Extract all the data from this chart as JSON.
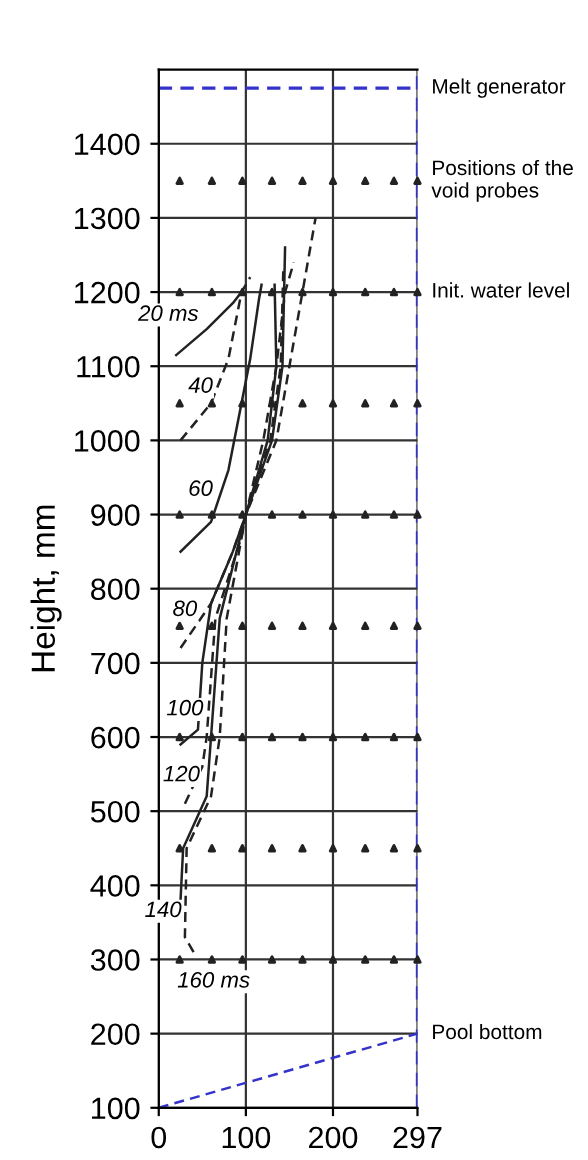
{
  "chart_data": {
    "type": "line",
    "ylabel": "Height, mm",
    "xlim": [
      0,
      297
    ],
    "xticks": [
      0,
      100,
      200,
      297
    ],
    "ylim": [
      100,
      1500
    ],
    "yticks": [
      100,
      200,
      300,
      400,
      500,
      600,
      700,
      800,
      900,
      1000,
      1100,
      1200,
      1300,
      1400
    ],
    "grid": true,
    "legend": false,
    "series": [
      {
        "color": "#222222",
        "line_style": "solid",
        "x": [
          20,
          55,
          85,
          95
        ],
        "values": [
          1115,
          1150,
          1185,
          1200
        ]
      },
      {
        "color": "#222222",
        "line_style": "dashed",
        "x": [
          25,
          60,
          80,
          95,
          105
        ],
        "values": [
          1000,
          1050,
          1110,
          1200,
          1220
        ]
      },
      {
        "color": "#222222",
        "line_style": "solid",
        "x": [
          25,
          60,
          80,
          95,
          105,
          115,
          118
        ],
        "values": [
          850,
          890,
          960,
          1050,
          1110,
          1190,
          1210
        ]
      },
      {
        "color": "#222222",
        "line_style": "dashed",
        "x": [
          25,
          60,
          85,
          100,
          120,
          135,
          145,
          155
        ],
        "values": [
          720,
          780,
          850,
          900,
          1000,
          1100,
          1200,
          1240
        ]
      },
      {
        "color": "#222222",
        "line_style": "solid",
        "x": [
          25,
          45,
          50,
          60,
          85,
          100,
          125,
          135,
          133
        ],
        "values": [
          590,
          610,
          700,
          780,
          850,
          900,
          1000,
          1100,
          1210
        ]
      },
      {
        "color": "#222222",
        "line_style": "dashed",
        "x": [
          30,
          50,
          55,
          65,
          95,
          100,
          128,
          140,
          143
        ],
        "values": [
          510,
          560,
          600,
          760,
          870,
          900,
          1000,
          1100,
          1230
        ]
      },
      {
        "color": "#222222",
        "line_style": "solid",
        "x": [
          25,
          28,
          55,
          60,
          70,
          100,
          130,
          142,
          145
        ],
        "values": [
          380,
          450,
          520,
          600,
          760,
          900,
          1000,
          1100,
          1260
        ]
      },
      {
        "color": "#222222",
        "line_style": "dashed",
        "x": [
          40,
          30,
          32,
          60,
          70,
          78,
          100,
          135,
          150,
          180
        ],
        "values": [
          310,
          330,
          450,
          520,
          600,
          760,
          900,
          1000,
          1100,
          1300
        ]
      },
      {
        "color": "#3333cc",
        "line_style": "dashed",
        "x": [
          0,
          297
        ],
        "values": [
          100,
          200
        ]
      },
      {
        "type": "scatter",
        "color": "#222222",
        "marker": "triangle",
        "x": [
          24,
          61,
          96,
          130,
          165,
          200,
          237,
          270,
          297,
          24,
          61,
          96,
          130,
          165,
          200,
          237,
          270,
          297,
          24,
          61,
          96,
          130,
          165,
          200,
          237,
          270,
          297,
          24,
          61,
          96,
          130,
          165,
          200,
          237,
          270,
          297,
          24,
          61,
          96,
          130,
          165,
          200,
          237,
          270,
          297,
          24,
          61,
          96,
          130,
          165,
          200,
          237,
          270,
          297,
          24,
          61,
          96,
          130,
          165,
          200,
          237,
          270,
          297,
          24,
          61,
          96,
          130,
          165,
          200,
          237,
          270,
          297
        ],
        "values": [
          1350,
          1350,
          1350,
          1350,
          1350,
          1350,
          1350,
          1350,
          1350,
          1200,
          1200,
          1200,
          1200,
          1200,
          1200,
          1200,
          1200,
          1200,
          1050,
          1050,
          1050,
          1050,
          1050,
          1050,
          1050,
          1050,
          1050,
          900,
          900,
          900,
          900,
          900,
          900,
          900,
          900,
          900,
          750,
          750,
          750,
          750,
          750,
          750,
          750,
          750,
          750,
          600,
          600,
          600,
          600,
          600,
          600,
          600,
          600,
          600,
          450,
          450,
          450,
          450,
          450,
          450,
          450,
          450,
          450,
          300,
          300,
          300,
          300,
          300,
          300,
          300,
          300,
          300
        ]
      }
    ],
    "ref_lines": [
      {
        "axis": "y",
        "value": 1475,
        "label": "Melt generator",
        "color": "#3333cc",
        "line_style": "dashed"
      },
      {
        "axis": "x",
        "value": 297,
        "color": "#3333cc",
        "line_style": "dashed"
      }
    ],
    "annotations": [
      {
        "text": "20 ms",
        "x": 11,
        "y": 1169
      },
      {
        "text": "40",
        "x": 48,
        "y": 1072
      },
      {
        "text": "60",
        "x": 48,
        "y": 933
      },
      {
        "text": "80",
        "x": 30,
        "y": 771
      },
      {
        "text": "100",
        "x": 30,
        "y": 637
      },
      {
        "text": "120",
        "x": 26,
        "y": 548
      },
      {
        "text": "140",
        "x": 5,
        "y": 365
      },
      {
        "text": "160 ms",
        "x": 63,
        "y": 270
      },
      {
        "text": "Positions of the void probes",
        "x": 297,
        "y": 1350
      },
      {
        "text": "Init. water level",
        "x": 297,
        "y": 1200
      },
      {
        "text": "Pool bottom",
        "x": 297,
        "y": 200
      }
    ]
  }
}
